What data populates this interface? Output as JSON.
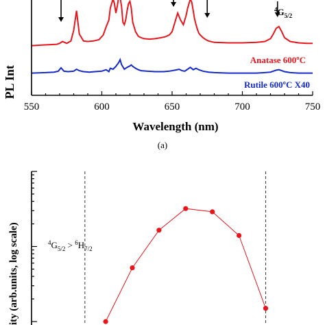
{
  "chart_data": [
    {
      "type": "line",
      "panel_label": "(a)",
      "xlabel": "Wavelength (nm)",
      "ylabel_visible": "PL Int",
      "xlim": [
        550,
        750
      ],
      "xticks": [
        550,
        600,
        650,
        700,
        750
      ],
      "grid": false,
      "series": [
        {
          "name": "Anatase 600°C",
          "color": "#e8151b",
          "x": [
            550,
            556,
            562,
            568,
            570,
            572,
            575,
            578,
            580,
            582,
            584,
            587,
            590,
            594,
            598,
            601,
            603,
            605,
            606,
            607,
            608,
            609,
            610,
            611,
            612,
            613,
            614,
            615,
            616,
            617,
            618,
            619,
            620,
            621,
            622,
            624,
            626,
            628,
            630,
            634,
            638,
            642,
            645,
            648,
            650,
            652,
            654,
            656,
            658,
            660,
            661,
            662,
            663,
            664,
            665,
            666,
            667,
            668,
            669,
            670,
            672,
            674,
            676,
            680,
            690,
            700,
            710,
            716,
            720,
            722,
            724,
            726,
            728,
            730,
            734,
            740,
            746,
            750
          ],
          "y": [
            0.05,
            0.06,
            0.07,
            0.08,
            0.1,
            0.14,
            0.1,
            0.15,
            0.38,
            0.8,
            0.3,
            0.15,
            0.14,
            0.15,
            0.18,
            0.28,
            0.45,
            0.6,
            0.85,
            0.95,
            1.05,
            0.95,
            0.75,
            0.9,
            1.1,
            1.08,
            0.9,
            0.55,
            0.5,
            0.6,
            0.8,
            0.95,
            1.0,
            0.85,
            0.55,
            0.35,
            0.25,
            0.22,
            0.2,
            0.19,
            0.2,
            0.22,
            0.24,
            0.28,
            0.35,
            0.55,
            0.75,
            0.6,
            0.5,
            0.7,
            0.85,
            0.95,
            1.05,
            0.98,
            0.8,
            0.62,
            0.5,
            0.4,
            0.32,
            0.28,
            0.22,
            0.18,
            0.15,
            0.12,
            0.11,
            0.11,
            0.12,
            0.14,
            0.2,
            0.3,
            0.42,
            0.46,
            0.35,
            0.22,
            0.14,
            0.11,
            0.1,
            0.1
          ]
        },
        {
          "name": "Rutile 600°C X40",
          "color": "#1428c8",
          "x": [
            550,
            560,
            566,
            569,
            571,
            573,
            576,
            580,
            582,
            584,
            587,
            591,
            595,
            600,
            603,
            605,
            606,
            608,
            610,
            612,
            613,
            614,
            616,
            618,
            620,
            621,
            622,
            624,
            626,
            628,
            632,
            638,
            644,
            648,
            652,
            655,
            657,
            659,
            661,
            663,
            665,
            667,
            669,
            672,
            676,
            680,
            690,
            700,
            710,
            716,
            720,
            722,
            724,
            726,
            728,
            730,
            734,
            740,
            746,
            750
          ],
          "y": [
            0.02,
            0.03,
            0.04,
            0.06,
            0.13,
            0.06,
            0.05,
            0.06,
            0.1,
            0.07,
            0.05,
            0.04,
            0.05,
            0.06,
            0.09,
            0.05,
            0.12,
            0.1,
            0.16,
            0.24,
            0.3,
            0.2,
            0.1,
            0.14,
            0.17,
            0.19,
            0.16,
            0.12,
            0.09,
            0.07,
            0.06,
            0.05,
            0.05,
            0.06,
            0.08,
            0.1,
            0.07,
            0.06,
            0.1,
            0.14,
            0.09,
            0.12,
            0.09,
            0.06,
            0.04,
            0.03,
            0.02,
            0.02,
            0.02,
            0.03,
            0.04,
            0.06,
            0.08,
            0.09,
            0.07,
            0.05,
            0.03,
            0.02,
            0.02,
            0.02
          ]
        }
      ],
      "arrow_marks_x": [
        571,
        651,
        675
      ],
      "annotations": [
        "⁴G₅/₂"
      ]
    },
    {
      "type": "line",
      "ylabel_visible": "ity (arb.units, log scale)",
      "scale": "log",
      "grid": false,
      "transition_label": "⁴G₅/₂ > ⁶H₇/₂",
      "series": [
        {
          "name": "",
          "color": "#e8151b",
          "marker": "circle",
          "points": [
            {
              "x": 0.0,
              "y": 0.01
            },
            {
              "x": 0.09,
              "y": 0.052
            },
            {
              "x": 0.18,
              "y": 0.165
            },
            {
              "x": 0.27,
              "y": 0.32
            },
            {
              "x": 0.36,
              "y": 0.29
            },
            {
              "x": 0.45,
              "y": 0.14
            },
            {
              "x": 0.54,
              "y": 0.015
            }
          ]
        }
      ],
      "vertical_dashed_x": [
        -0.07,
        0.54
      ],
      "ylim": [
        0.009,
        1.0
      ],
      "xlim": [
        -0.25,
        0.74
      ]
    }
  ],
  "labels": {
    "panel_a": "(a)",
    "xlabel_a": "Wavelength (nm)",
    "ylabel_a": "PL Int",
    "legend_anatase": "Anatase 600ºC",
    "legend_rutile": "Rutile 600ºC X40",
    "anno_top_right": "G",
    "anno_top_right_sup": "4",
    "anno_top_right_sub": "5/2",
    "ylabel_b": "ity (arb.units, log scale)",
    "transition_g": "G",
    "transition_g_sup": "4",
    "transition_g_sub": "5/2",
    "transition_op": " > ",
    "transition_h": "H",
    "transition_h_sup": "6",
    "transition_h_sub": "7/2",
    "x_tick_labels": [
      "550",
      "600",
      "650",
      "700",
      "750"
    ]
  }
}
